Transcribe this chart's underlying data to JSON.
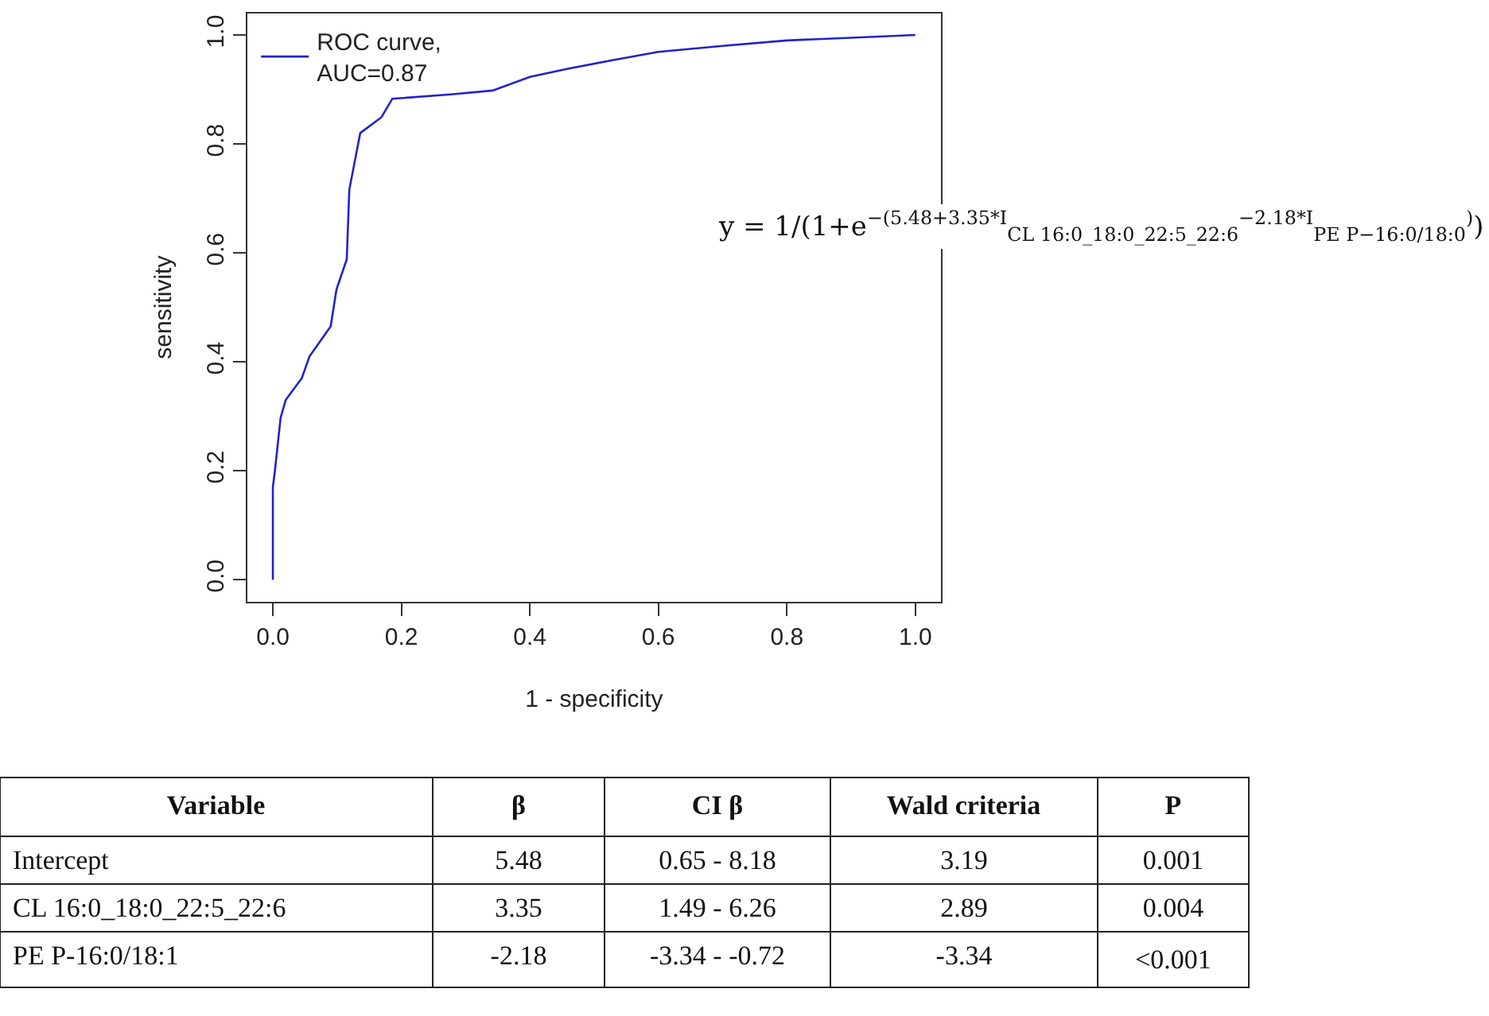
{
  "chart_data": [
    {
      "type": "line",
      "xlabel": "1 - specificity",
      "ylabel": "sensitivity",
      "xlim": [
        -0.04,
        1.04
      ],
      "ylim": [
        -0.04,
        1.04
      ],
      "xticks": [
        {
          "value": 0,
          "label": "0.0"
        },
        0.2,
        0.4,
        0.6,
        0.8,
        {
          "value": 1,
          "label": "1.0"
        }
      ],
      "yticks": [
        {
          "value": 0,
          "label": "0.0"
        },
        0.2,
        0.4,
        0.6,
        0.8,
        {
          "value": 1,
          "label": "1.0"
        }
      ],
      "legend": "top left",
      "marker": "none",
      "line_style": "solid",
      "annotations": [
        "y = 1/(1+e$^{−(5.48+3.35*I}$$_{CL 16:0_18:0_22:5_22:6}$$^{−2.18*I}$$_{PE P−16:0/18:0}$$^{)}$)"
      ],
      "series": [
        {
          "name": "ROC curve,\nAUC=0.87",
          "color": "#2222cc",
          "x": [
            0,
            0,
            0.003,
            0.012,
            0.02,
            0.045,
            0.057,
            0.09,
            0.099,
            0.115,
            0.119,
            0.136,
            0.169,
            0.186,
            0.277,
            0.342,
            0.4,
            0.459,
            0.525,
            0.6,
            0.7,
            0.8,
            0.9,
            1.0
          ],
          "values": [
            0,
            0.17,
            0.198,
            0.297,
            0.33,
            0.37,
            0.41,
            0.465,
            0.533,
            0.588,
            0.716,
            0.82,
            0.849,
            0.883,
            0.891,
            0.898,
            0.923,
            0.938,
            0.953,
            0.969,
            0.98,
            0.99,
            0.995,
            1.0
          ]
        }
      ]
    },
    {
      "type": "other",
      "categories": [
        "Variable",
        "β",
        "CI β",
        "Wald criteria",
        "P"
      ],
      "annotations": [
        "Intercept",
        "5.48",
        "0.65 - 8.18",
        "3.19",
        "0.001",
        "CL 16:0_18:0_22:5_22:6",
        "3.35",
        "1.49 - 6.26",
        "2.89",
        "0.004",
        "PE P-16:0/18:1",
        "-2.18",
        "-3.34 - -0.72",
        "-3.34",
        "<0.001"
      ]
    }
  ]
}
